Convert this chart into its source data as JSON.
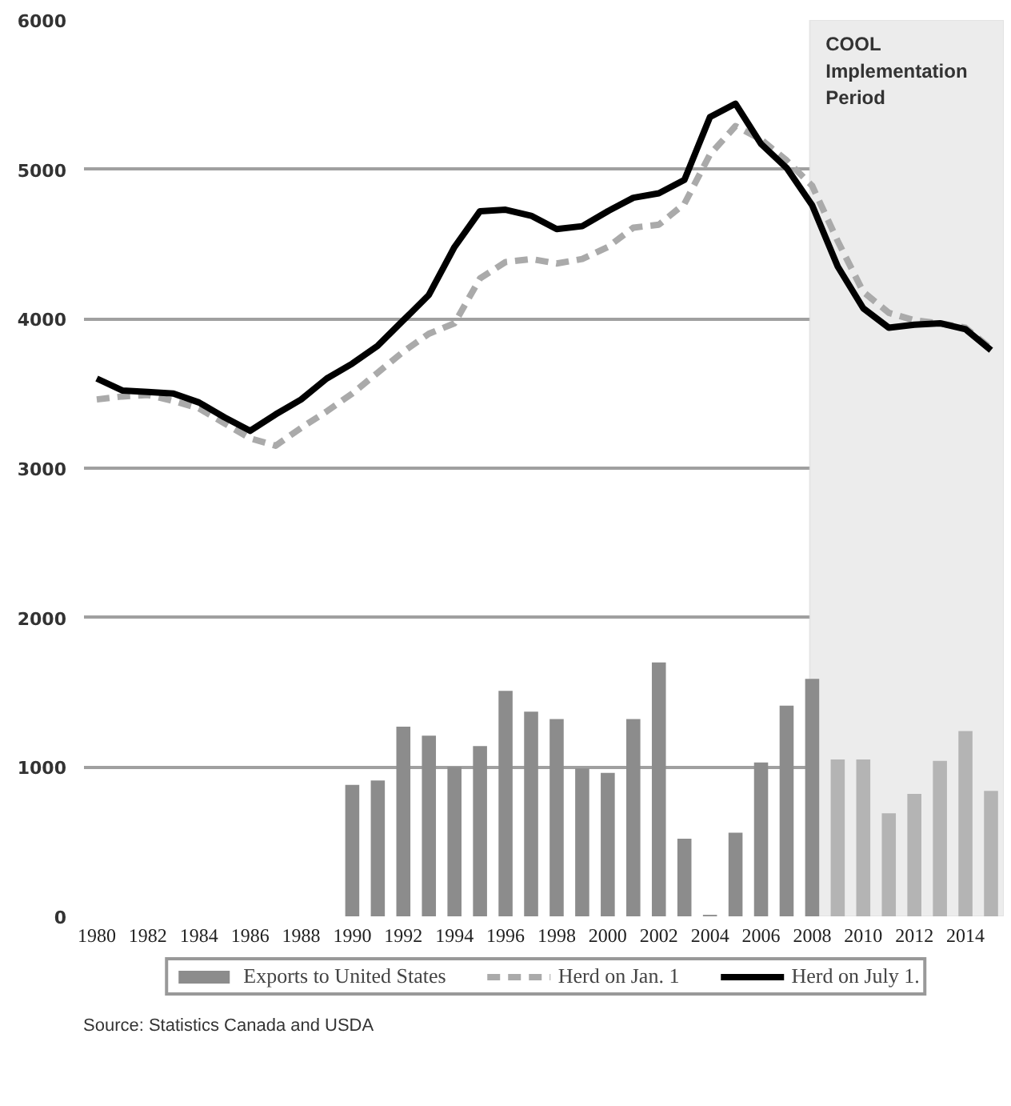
{
  "chart_data": {
    "type": "bar",
    "x": [
      1980,
      1981,
      1982,
      1983,
      1984,
      1985,
      1986,
      1987,
      1988,
      1989,
      1990,
      1991,
      1992,
      1993,
      1994,
      1995,
      1996,
      1997,
      1998,
      1999,
      2000,
      2001,
      2002,
      2003,
      2004,
      2005,
      2006,
      2007,
      2008,
      2009,
      2010,
      2011,
      2012,
      2013,
      2014,
      2015
    ],
    "series": [
      {
        "name": "Exports to United States",
        "colors": [
          "#8c8c8c",
          "#8c8c8c",
          "#8c8c8c",
          "#8c8c8c",
          "#8c8c8c",
          "#8c8c8c",
          "#8c8c8c",
          "#8c8c8c",
          "#8c8c8c",
          "#8c8c8c",
          "#8c8c8c",
          "#8c8c8c",
          "#8c8c8c",
          "#8c8c8c",
          "#8c8c8c",
          "#8c8c8c",
          "#8c8c8c",
          "#8c8c8c",
          "#8c8c8c",
          "#8c8c8c",
          "#8c8c8c",
          "#8c8c8c",
          "#8c8c8c",
          "#8c8c8c",
          "#8c8c8c",
          "#8c8c8c",
          "#8c8c8c",
          "#8c8c8c",
          "#8c8c8c",
          "#b4b4b4",
          "#b4b4b4",
          "#b4b4b4",
          "#b4b4b4",
          "#b4b4b4",
          "#b4b4b4",
          "#b4b4b4"
        ],
        "values": [
          null,
          null,
          null,
          null,
          null,
          null,
          null,
          null,
          null,
          null,
          880,
          910,
          1270,
          1210,
          1000,
          1140,
          1510,
          1370,
          1320,
          990,
          960,
          1320,
          1700,
          520,
          10,
          560,
          1030,
          1410,
          1590,
          1050,
          1050,
          690,
          820,
          1040,
          1240,
          840
        ]
      },
      {
        "name": "Herd on Jan. 1",
        "type": "line",
        "color": "#aaaaaa",
        "line_style": "dashed",
        "values": [
          3460,
          3480,
          3490,
          3450,
          3400,
          3300,
          3200,
          3150,
          3270,
          3380,
          3500,
          3640,
          3780,
          3900,
          3970,
          4270,
          4380,
          4400,
          4370,
          4400,
          4480,
          4610,
          4630,
          4770,
          5100,
          5290,
          5200,
          5060,
          4890,
          4520,
          4180,
          4040,
          3990,
          3970,
          3940,
          3800
        ]
      },
      {
        "name": "Herd on July 1.",
        "type": "line",
        "color": "#000000",
        "line_style": "solid",
        "values": [
          3600,
          3520,
          3510,
          3500,
          3440,
          3340,
          3250,
          3360,
          3460,
          3600,
          3700,
          3820,
          3990,
          4160,
          4480,
          4720,
          4730,
          4690,
          4600,
          4620,
          4720,
          4810,
          4840,
          4930,
          5350,
          5440,
          5170,
          5010,
          4760,
          4350,
          4070,
          3940,
          3960,
          3970,
          3930,
          3790
        ]
      }
    ],
    "xlim": [
      1979.5,
      2015.5
    ],
    "xticks": [
      1980,
      1982,
      1984,
      1986,
      1988,
      1990,
      1992,
      1994,
      1996,
      1998,
      2000,
      2002,
      2004,
      2006,
      2008,
      2010,
      2012,
      2014
    ],
    "ylim": [
      0,
      6000
    ],
    "yticks": [
      0,
      1000,
      2000,
      3000,
      4000,
      5000,
      6000
    ],
    "grid": "y",
    "legend": "bottom",
    "bands": [
      {
        "axis": "x",
        "from": 2007.9,
        "to": 2015.5,
        "label": "COOL Implementation Period",
        "color": "#ececec"
      }
    ],
    "annotations": [
      "Source: Statistics Canada and USDA"
    ]
  }
}
